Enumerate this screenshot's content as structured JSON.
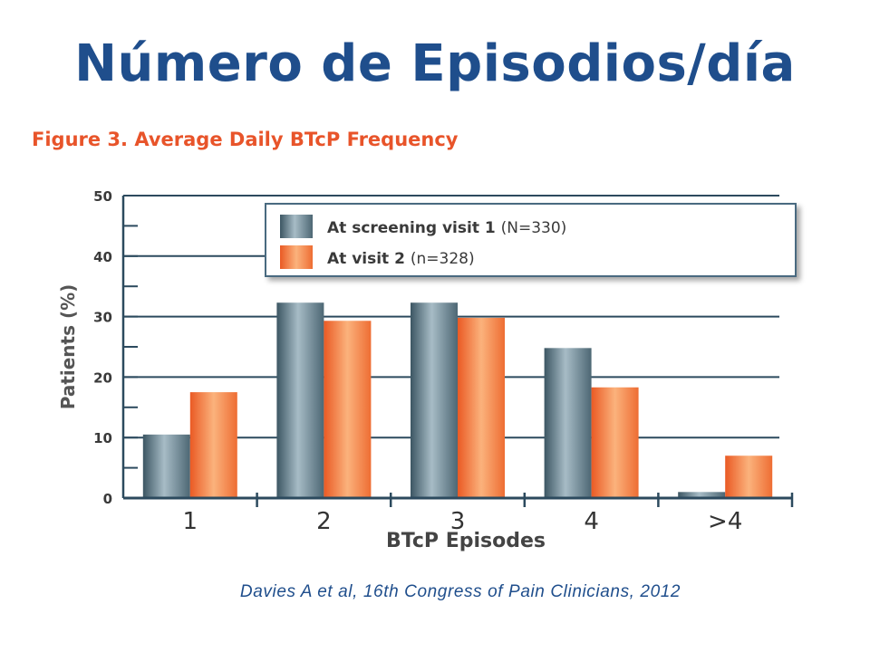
{
  "slide": {
    "title": "Número de Episodios/día",
    "figure_title": "Figure 3. Average Daily BTcP Frequency",
    "citation": "Davies A et al,  16th Congress of Pain Clinicians, 2012"
  },
  "chart_data": {
    "type": "bar",
    "title": "Figure 3. Average Daily BTcP Frequency",
    "xlabel": "BTcP Episodes",
    "ylabel": "Patients (%)",
    "categories": [
      "1",
      "2",
      "3",
      "4",
      ">4"
    ],
    "ylim": [
      0,
      50
    ],
    "yticks": [
      "0",
      "10",
      "20",
      "30",
      "40",
      "50"
    ],
    "grid": true,
    "legend_position": "top-right",
    "series": [
      {
        "name": "At screening visit 1",
        "legend_bold": "At screening visit 1",
        "legend_note": "(N=330)",
        "color": "#4e6c7a",
        "values": [
          10.5,
          32.3,
          32.3,
          24.8,
          1.0
        ]
      },
      {
        "name": "At visit 2",
        "legend_bold": "At visit 2",
        "legend_note": "(n=328)",
        "color": "#f0763c",
        "values": [
          17.5,
          29.3,
          29.8,
          18.3,
          7.0
        ]
      }
    ]
  }
}
